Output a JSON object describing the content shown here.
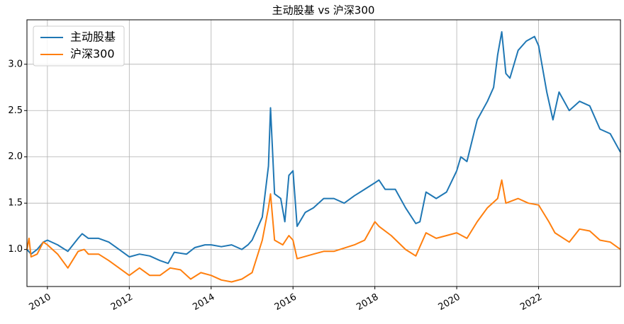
{
  "chart_data": {
    "type": "line",
    "title": "主动股基 vs 沪深300",
    "grid": true,
    "legend": "upper left",
    "xlim": [
      2009.5,
      2024.0
    ],
    "xticks": [
      2010,
      2012,
      2014,
      2016,
      2018,
      2020,
      2022
    ],
    "ylim": [
      0.6,
      3.48
    ],
    "yticks": [
      {
        "value": 1,
        "label": "1.0"
      },
      {
        "value": 1.5,
        "label": "1.5"
      },
      {
        "value": 2,
        "label": "2.0"
      },
      {
        "value": 2.5,
        "label": "2.5"
      },
      {
        "value": 3,
        "label": "3.0"
      }
    ],
    "series": [
      {
        "name": "主动股基",
        "color": "#1f77b4",
        "x": [
          2009.5,
          2009.6,
          2009.75,
          2009.9,
          2010.0,
          2010.25,
          2010.5,
          2010.75,
          2010.85,
          2011.0,
          2011.25,
          2011.5,
          2011.75,
          2012.0,
          2012.25,
          2012.5,
          2012.75,
          2012.95,
          2013.1,
          2013.4,
          2013.6,
          2013.85,
          2014.0,
          2014.25,
          2014.5,
          2014.75,
          2014.9,
          2015.0,
          2015.25,
          2015.4,
          2015.45,
          2015.55,
          2015.7,
          2015.8,
          2015.9,
          2016.0,
          2016.1,
          2016.3,
          2016.5,
          2016.75,
          2017.0,
          2017.25,
          2017.5,
          2017.75,
          2018.0,
          2018.1,
          2018.25,
          2018.5,
          2018.75,
          2019.0,
          2019.1,
          2019.25,
          2019.5,
          2019.75,
          2020.0,
          2020.1,
          2020.25,
          2020.5,
          2020.75,
          2020.9,
          2021.0,
          2021.1,
          2021.2,
          2021.3,
          2021.5,
          2021.7,
          2021.9,
          2022.0,
          2022.2,
          2022.35,
          2022.5,
          2022.75,
          2023.0,
          2023.25,
          2023.5,
          2023.75,
          2024.0
        ],
        "values": [
          1.0,
          0.95,
          1.0,
          1.08,
          1.1,
          1.05,
          0.98,
          1.12,
          1.17,
          1.12,
          1.12,
          1.08,
          1.0,
          0.92,
          0.95,
          0.93,
          0.88,
          0.85,
          0.97,
          0.95,
          1.02,
          1.05,
          1.05,
          1.03,
          1.05,
          1.0,
          1.05,
          1.1,
          1.35,
          1.9,
          2.53,
          1.6,
          1.55,
          1.3,
          1.8,
          1.85,
          1.25,
          1.4,
          1.45,
          1.55,
          1.55,
          1.5,
          1.58,
          1.65,
          1.72,
          1.75,
          1.65,
          1.65,
          1.45,
          1.28,
          1.3,
          1.62,
          1.55,
          1.62,
          1.85,
          2.0,
          1.95,
          2.4,
          2.6,
          2.75,
          3.1,
          3.35,
          2.9,
          2.85,
          3.15,
          3.25,
          3.3,
          3.2,
          2.7,
          2.4,
          2.7,
          2.5,
          2.6,
          2.55,
          2.3,
          2.25,
          2.05
        ]
      },
      {
        "name": "沪深300",
        "color": "#ff7f0e",
        "x": [
          2009.5,
          2009.55,
          2009.6,
          2009.75,
          2009.9,
          2010.0,
          2010.25,
          2010.5,
          2010.75,
          2010.9,
          2011.0,
          2011.25,
          2011.5,
          2011.75,
          2012.0,
          2012.25,
          2012.5,
          2012.75,
          2013.0,
          2013.25,
          2013.5,
          2013.75,
          2014.0,
          2014.25,
          2014.5,
          2014.75,
          2015.0,
          2015.25,
          2015.4,
          2015.45,
          2015.55,
          2015.75,
          2015.9,
          2016.0,
          2016.1,
          2016.5,
          2016.75,
          2017.0,
          2017.5,
          2017.75,
          2018.0,
          2018.1,
          2018.4,
          2018.75,
          2019.0,
          2019.25,
          2019.5,
          2019.75,
          2020.0,
          2020.25,
          2020.5,
          2020.75,
          2021.0,
          2021.1,
          2021.2,
          2021.5,
          2021.75,
          2022.0,
          2022.25,
          2022.4,
          2022.75,
          2023.0,
          2023.25,
          2023.5,
          2023.75,
          2024.0
        ],
        "values": [
          1.0,
          1.12,
          0.92,
          0.95,
          1.08,
          1.05,
          0.95,
          0.8,
          0.98,
          1.0,
          0.95,
          0.95,
          0.88,
          0.8,
          0.72,
          0.8,
          0.72,
          0.72,
          0.8,
          0.78,
          0.68,
          0.75,
          0.72,
          0.67,
          0.65,
          0.68,
          0.75,
          1.1,
          1.45,
          1.6,
          1.1,
          1.05,
          1.15,
          1.1,
          0.9,
          0.95,
          0.98,
          0.98,
          1.05,
          1.1,
          1.3,
          1.25,
          1.15,
          1.0,
          0.93,
          1.18,
          1.12,
          1.15,
          1.18,
          1.12,
          1.3,
          1.45,
          1.55,
          1.75,
          1.5,
          1.55,
          1.5,
          1.48,
          1.3,
          1.18,
          1.08,
          1.22,
          1.2,
          1.1,
          1.08,
          1.0
        ]
      }
    ]
  }
}
